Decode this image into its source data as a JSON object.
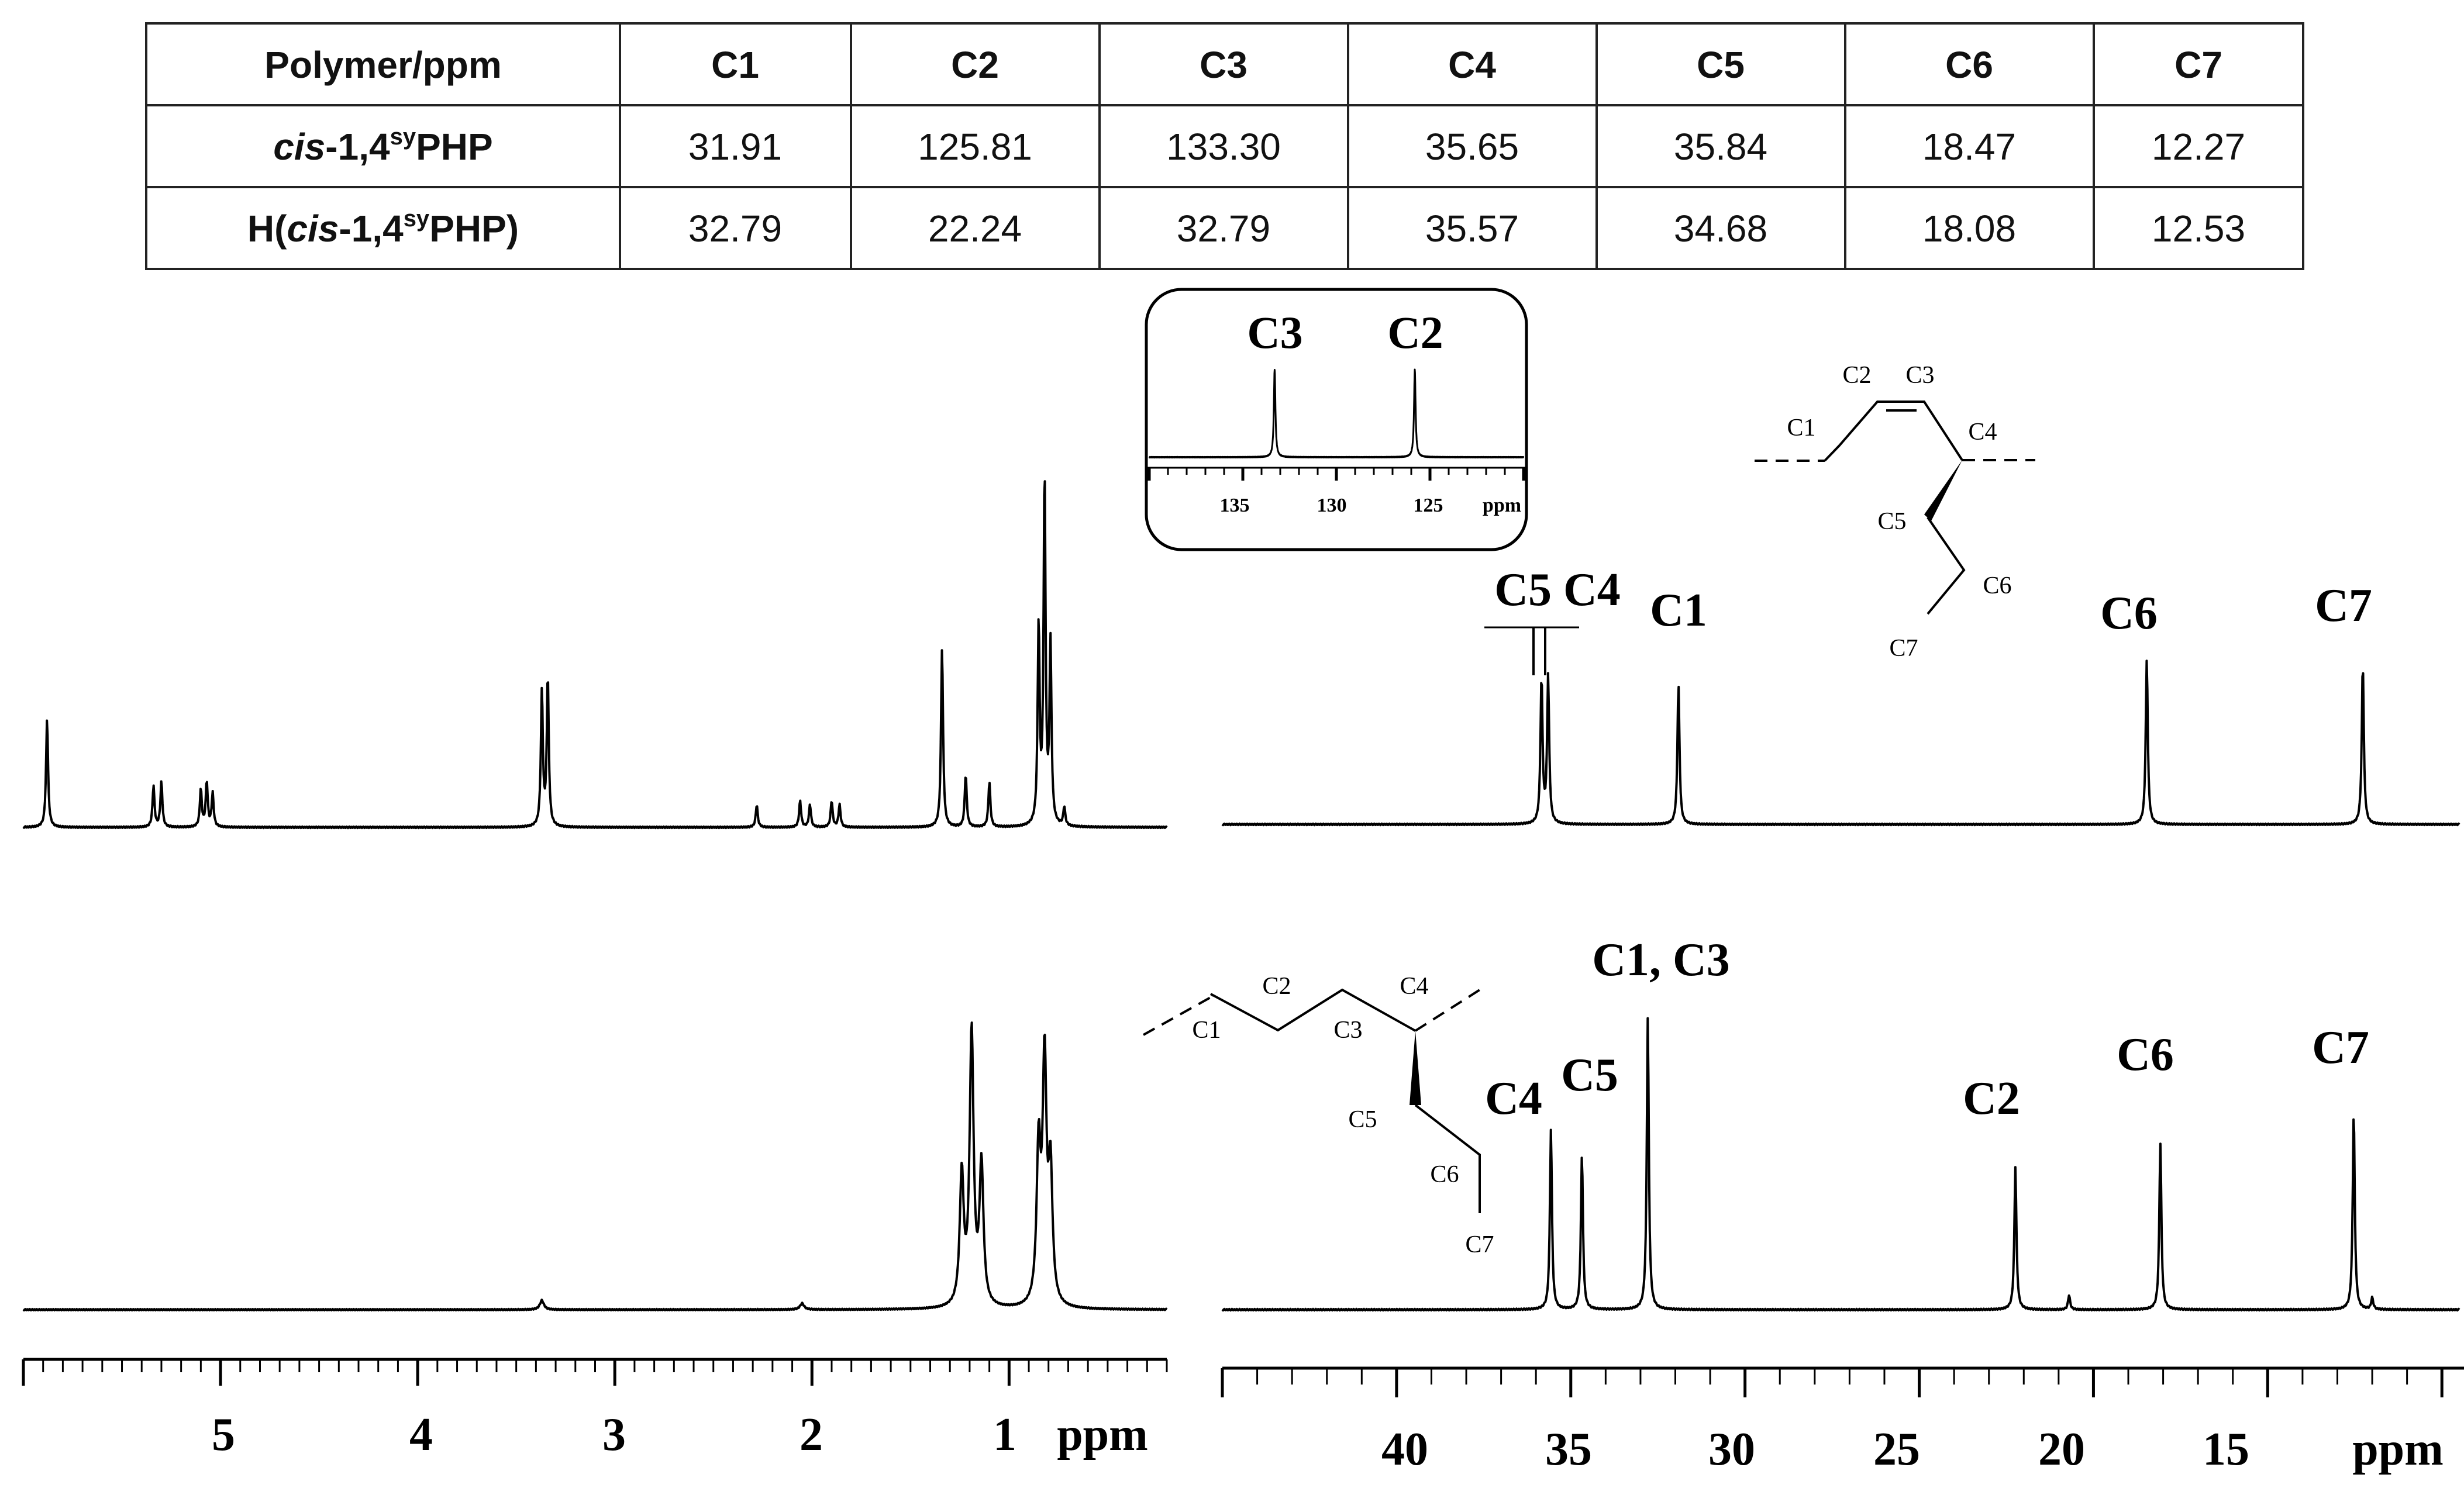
{
  "table": {
    "headers": [
      "Polymer/ppm",
      "C1",
      "C2",
      "C3",
      "C4",
      "C5",
      "C6",
      "C7"
    ],
    "rows": [
      {
        "polymer_pre": "",
        "polymer_ital": "cis",
        "polymer_mid": "-1,4",
        "polymer_sup": "sy",
        "polymer_post": "PHP",
        "values": [
          "31.91",
          "125.81",
          "133.30",
          "35.65",
          "35.84",
          "18.47",
          "12.27"
        ]
      },
      {
        "polymer_pre": "H(",
        "polymer_ital": "cis",
        "polymer_mid": "-1,4",
        "polymer_sup": "sy",
        "polymer_post": "PHP)",
        "values": [
          "32.79",
          "22.24",
          "32.79",
          "35.57",
          "34.68",
          "18.08",
          "12.53"
        ]
      }
    ]
  },
  "chart_data": [
    {
      "type": "line",
      "description_id": "h1-nmr-top",
      "xlabel": "ppm",
      "x_range": [
        6.0,
        0.2
      ],
      "ticks": [
        5,
        4,
        3,
        2,
        1
      ],
      "peaks": [
        {
          "x": 5.88,
          "height": 0.29
        },
        {
          "x": 5.34,
          "height": 0.11
        },
        {
          "x": 5.3,
          "height": 0.12
        },
        {
          "x": 5.1,
          "height": 0.1
        },
        {
          "x": 5.07,
          "height": 0.12
        },
        {
          "x": 5.04,
          "height": 0.09
        },
        {
          "x": 3.37,
          "height": 0.36
        },
        {
          "x": 3.34,
          "height": 0.4
        },
        {
          "x": 2.28,
          "height": 0.06
        },
        {
          "x": 2.06,
          "height": 0.07
        },
        {
          "x": 2.01,
          "height": 0.06
        },
        {
          "x": 1.9,
          "height": 0.07
        },
        {
          "x": 1.86,
          "height": 0.06
        },
        {
          "x": 1.34,
          "height": 0.48
        },
        {
          "x": 1.22,
          "height": 0.14
        },
        {
          "x": 1.1,
          "height": 0.12
        },
        {
          "x": 0.85,
          "height": 0.53
        },
        {
          "x": 0.82,
          "height": 0.93
        },
        {
          "x": 0.79,
          "height": 0.48
        },
        {
          "x": 0.72,
          "height": 0.05
        }
      ]
    },
    {
      "type": "line",
      "description_id": "c13-nmr-top",
      "xlabel": "ppm",
      "x_range": [
        45,
        9.5
      ],
      "peaks": [
        {
          "x": 35.84,
          "height": 0.83,
          "label": "C5"
        },
        {
          "x": 35.65,
          "height": 0.84,
          "label": "C4"
        },
        {
          "x": 31.91,
          "height": 0.8,
          "label": "C1"
        },
        {
          "x": 18.47,
          "height": 0.94,
          "label": "C6"
        },
        {
          "x": 12.27,
          "height": 0.92,
          "label": "C7"
        }
      ],
      "labels": [
        "C5 C4",
        "C1",
        "C6",
        "C7"
      ]
    },
    {
      "type": "line",
      "description_id": "c13-inset",
      "xlabel": "ppm",
      "x_range": [
        140,
        120
      ],
      "ticks": [
        135,
        130,
        125
      ],
      "peaks": [
        {
          "x": 133.3,
          "height": 1.0,
          "label": "C3"
        },
        {
          "x": 125.81,
          "height": 1.0,
          "label": "C2"
        }
      ]
    },
    {
      "type": "line",
      "description_id": "h1-nmr-bottom",
      "xlabel": "ppm",
      "x_range": [
        6.0,
        0.2
      ],
      "ticks": [
        5,
        4,
        3,
        2,
        1
      ],
      "peaks": [
        {
          "x": 3.37,
          "height": 0.03
        },
        {
          "x": 2.05,
          "height": 0.02
        },
        {
          "x": 1.24,
          "height": 0.42
        },
        {
          "x": 1.19,
          "height": 0.88
        },
        {
          "x": 1.14,
          "height": 0.45
        },
        {
          "x": 0.85,
          "height": 0.49
        },
        {
          "x": 0.82,
          "height": 0.77
        },
        {
          "x": 0.79,
          "height": 0.42
        }
      ]
    },
    {
      "type": "line",
      "description_id": "c13-nmr-bottom",
      "xlabel": "ppm",
      "x_range": [
        45,
        9.5
      ],
      "ticks": [
        40,
        35,
        30,
        25,
        20,
        15
      ],
      "peaks": [
        {
          "x": 35.57,
          "height": 0.62,
          "label": "C4"
        },
        {
          "x": 34.68,
          "height": 0.53,
          "label": "C5"
        },
        {
          "x": 32.79,
          "height": 1.0,
          "label": "C1, C3"
        },
        {
          "x": 22.24,
          "height": 0.49,
          "label": "C2"
        },
        {
          "x": 20.7,
          "height": 0.05
        },
        {
          "x": 18.08,
          "height": 0.57,
          "label": "C6"
        },
        {
          "x": 12.53,
          "height": 0.68,
          "label": "C7"
        },
        {
          "x": 12.0,
          "height": 0.04
        }
      ],
      "labels": [
        "C4",
        "C5",
        "C1, C3",
        "C2",
        "C6",
        "C7"
      ]
    }
  ],
  "structures": {
    "top": [
      "C1",
      "C2",
      "C3",
      "C4",
      "C5",
      "C6",
      "C7"
    ],
    "bottom": [
      "C1",
      "C2",
      "C3",
      "C4",
      "C5",
      "C6",
      "C7"
    ]
  },
  "inset_labels": {
    "c3": "C3",
    "c2": "C2",
    "unit": "ppm"
  }
}
